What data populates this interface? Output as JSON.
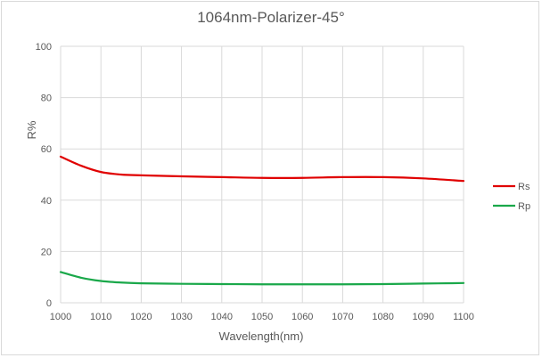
{
  "chart_data": {
    "type": "line",
    "title": "1064nm-Polarizer-45°",
    "xlabel": "Wavelength(nm)",
    "ylabel": "R%",
    "xlim": [
      1000,
      1100
    ],
    "ylim": [
      0,
      100
    ],
    "x_ticks": [
      1000,
      1010,
      1020,
      1030,
      1040,
      1050,
      1060,
      1070,
      1080,
      1090,
      1100
    ],
    "y_ticks": [
      0,
      20,
      40,
      60,
      80,
      100
    ],
    "grid": true,
    "legend_position": "right",
    "x": [
      1000,
      1005,
      1010,
      1015,
      1020,
      1030,
      1040,
      1050,
      1060,
      1070,
      1080,
      1090,
      1100
    ],
    "series": [
      {
        "name": "Rs",
        "color": "#e00000",
        "values": [
          57,
          53.5,
          51,
          50,
          49.7,
          49.3,
          49.0,
          48.7,
          48.7,
          49.0,
          49.0,
          48.5,
          47.5
        ]
      },
      {
        "name": "Rp",
        "color": "#1aa84a",
        "values": [
          12,
          9.8,
          8.5,
          7.9,
          7.6,
          7.4,
          7.3,
          7.2,
          7.2,
          7.2,
          7.3,
          7.5,
          7.7
        ]
      }
    ]
  }
}
